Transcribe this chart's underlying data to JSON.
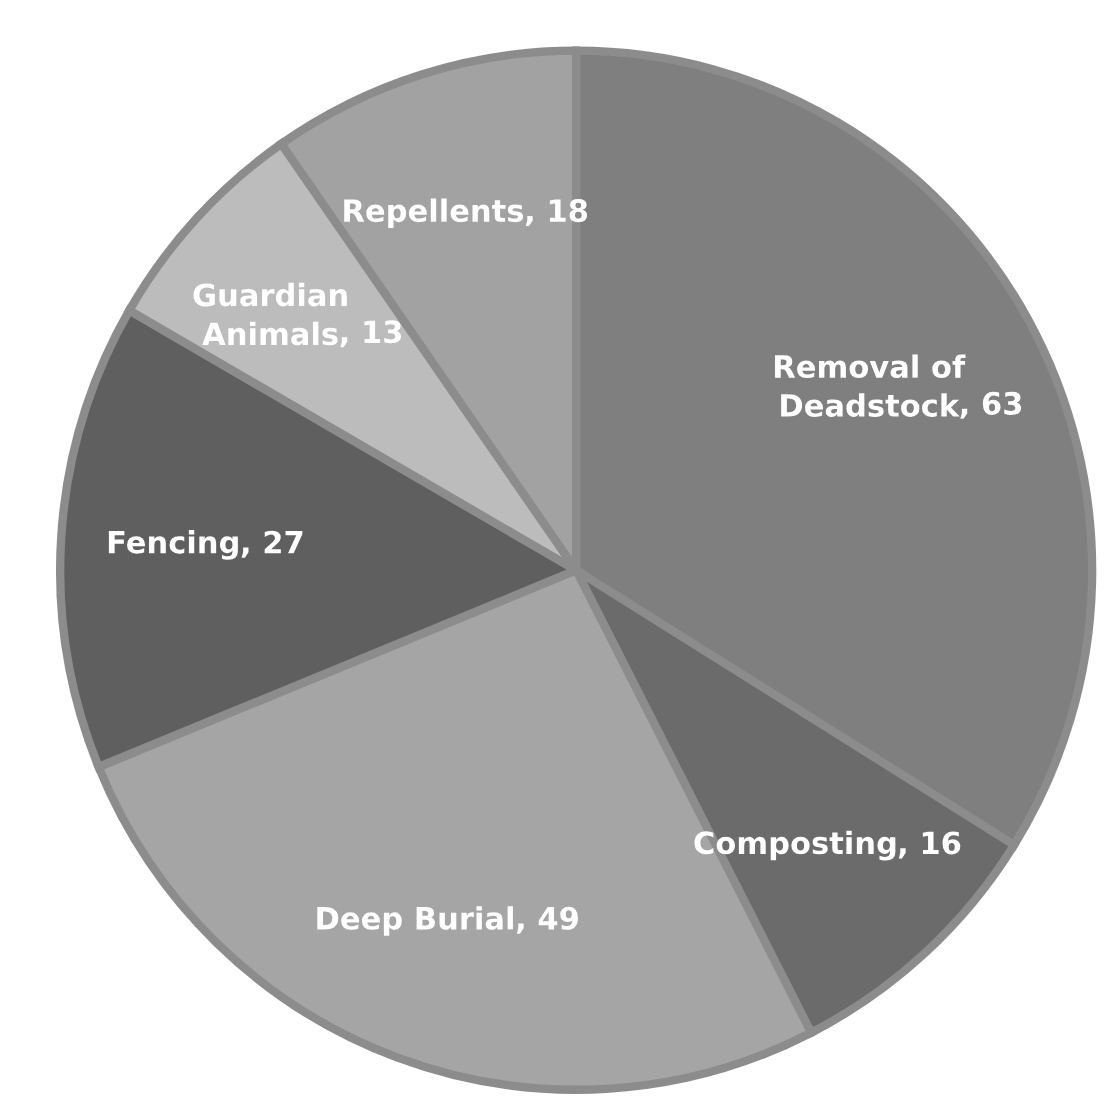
{
  "chart_data": {
    "type": "pie",
    "categories": [
      "Removal of Deadstock",
      "Composting",
      "Deep Burial",
      "Fencing",
      "Guardian Animals",
      "Repellents"
    ],
    "values": [
      63,
      16,
      49,
      27,
      13,
      18
    ],
    "colors": [
      "#7f7f7f",
      "#6b6b6b",
      "#a5a5a5",
      "#5f5f5f",
      "#bcbcbc",
      "#a2a2a2"
    ],
    "value_labels": [
      ", 63",
      ", 16",
      ", 49",
      ", 27",
      ", 13",
      ", 18"
    ],
    "legend": false
  }
}
